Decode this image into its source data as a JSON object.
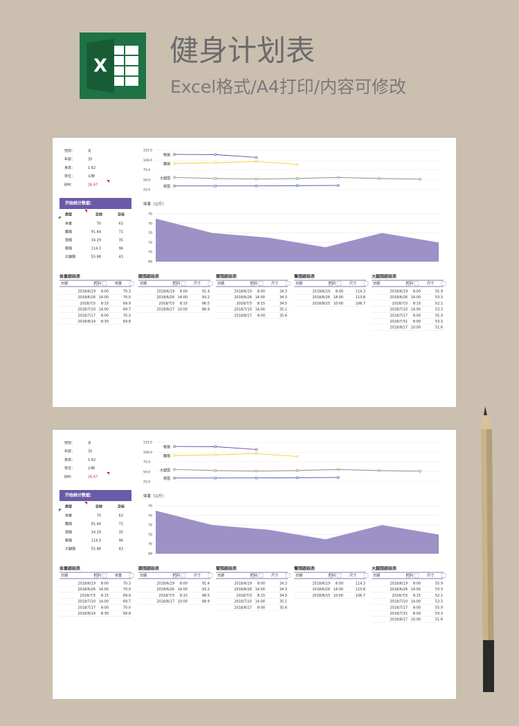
{
  "header": {
    "title": "健身计划表",
    "subtitle": "Excel格式/A4打印/内容可修改"
  },
  "profile": [
    {
      "label": "性别：",
      "value": "女"
    },
    {
      "label": "年龄：",
      "value": "35"
    },
    {
      "label": "身高：",
      "value": "1.62"
    },
    {
      "label": "单位：",
      "value": "公制"
    },
    {
      "label": "BMI：",
      "value": "26.67"
    }
  ],
  "stats": {
    "title": "开始统计数据：",
    "columns": [
      "类型",
      "目前",
      "目标"
    ],
    "rows": [
      [
        "体重",
        "70",
        "63"
      ],
      [
        "腰围",
        "91.44",
        "71"
      ],
      [
        "臂围",
        "34.29",
        "35"
      ],
      [
        "臀围",
        "114.3",
        "96"
      ],
      [
        "大腿围",
        "55.88",
        "43"
      ]
    ]
  },
  "line_chart": {
    "type": "line",
    "ylim": [
      25,
      125
    ],
    "yticks": [
      {
        "value": 25,
        "label": "25.0"
      },
      {
        "value": 50,
        "label": "50.0"
      },
      {
        "value": 75,
        "label": "75.0"
      },
      {
        "value": 100,
        "label": "100.0"
      },
      {
        "value": 125,
        "label": "125.0"
      }
    ],
    "series": [
      {
        "name": "臀围",
        "color": "#6b4aa0",
        "values": [
          114.3,
          113.8,
          106.7
        ]
      },
      {
        "name": "腰围",
        "color": "#f2cf3a",
        "values": [
          91.4,
          93.2,
          96.5,
          88.9
        ]
      },
      {
        "name": "大腿围",
        "color": "#8a8a8a",
        "values": [
          55.9,
          53.3,
          52.1,
          53.3,
          55.9,
          53.3,
          51.6
        ]
      },
      {
        "name": "臂围",
        "color": "#4356b0",
        "values": [
          34.3,
          34.3,
          34.5,
          35.1,
          35.6
        ]
      }
    ]
  },
  "area_chart": {
    "type": "area",
    "title": "体重（公斤）",
    "ylim": [
      69.4,
      70.4
    ],
    "yticks": [
      {
        "value": 69.4,
        "label": "69"
      },
      {
        "value": 69.6,
        "label": "70"
      },
      {
        "value": 69.8,
        "label": "70"
      },
      {
        "value": 70.0,
        "label": "70"
      },
      {
        "value": 70.2,
        "label": "70"
      },
      {
        "value": 70.4,
        "label": "70"
      }
    ],
    "values": [
      70.3,
      70.0,
      69.9,
      69.7,
      70.0,
      69.8
    ],
    "color": "#9d91c6"
  },
  "tracking": [
    {
      "title": "体重跟踪表",
      "columns": [
        "日期",
        "时间",
        "体重"
      ],
      "rows": [
        [
          "2018/6/19",
          "8:00",
          "70.3"
        ],
        [
          "2018/6/26",
          "14:00",
          "70.0"
        ],
        [
          "2018/7/3",
          "8:15",
          "69.9"
        ],
        [
          "2018/7/10",
          "14:00",
          "69.7"
        ],
        [
          "2018/7/17",
          "8:00",
          "70.0"
        ],
        [
          "2018/8/14",
          "8:30",
          "69.8"
        ]
      ]
    },
    {
      "title": "腰围跟踪表",
      "columns": [
        "日期",
        "时间",
        "尺寸"
      ],
      "rows": [
        [
          "2018/6/19",
          "8:00",
          "91.4"
        ],
        [
          "2018/6/26",
          "14:00",
          "93.2"
        ],
        [
          "2018/7/3",
          "8:15",
          "96.5"
        ],
        [
          "2018/8/17",
          "10:00",
          "88.9"
        ]
      ]
    },
    {
      "title": "臂围跟踪表",
      "columns": [
        "日期",
        "时间",
        "尺寸"
      ],
      "rows": [
        [
          "2018/6/19",
          "8:00",
          "34.3"
        ],
        [
          "2018/6/26",
          "14:00",
          "34.3"
        ],
        [
          "2018/7/3",
          "8:15",
          "34.5"
        ],
        [
          "2018/7/10",
          "14:00",
          "35.1"
        ],
        [
          "2018/8/17",
          "8:00",
          "35.6"
        ]
      ]
    },
    {
      "title": "臀围跟踪表",
      "columns": [
        "日期",
        "时间",
        "尺寸"
      ],
      "rows": [
        [
          "2018/6/19",
          "8:00",
          "114.3"
        ],
        [
          "2018/6/26",
          "14:00",
          "113.8"
        ],
        [
          "2018/8/15",
          "10:00",
          "106.7"
        ]
      ]
    },
    {
      "title": "大腿围跟踪表",
      "columns": [
        "日期",
        "时间",
        "尺寸"
      ],
      "rows": [
        [
          "2018/6/19",
          "8:00",
          "55.9"
        ],
        [
          "2018/6/26",
          "14:00",
          "53.3"
        ],
        [
          "2018/7/3",
          "8:15",
          "52.1"
        ],
        [
          "2018/7/10",
          "14:00",
          "53.3"
        ],
        [
          "2018/7/17",
          "8:00",
          "55.9"
        ],
        [
          "2018/7/31",
          "8:00",
          "53.3"
        ],
        [
          "2018/8/17",
          "10:00",
          "51.6"
        ]
      ]
    }
  ]
}
